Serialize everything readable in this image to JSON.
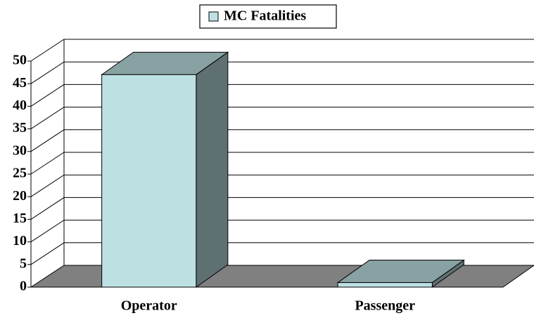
{
  "chart_data": {
    "type": "bar3d",
    "categories": [
      "Operator",
      "Passenger"
    ],
    "series": [
      {
        "name": "MC Fatalities",
        "color": "#bde0e3",
        "values": [
          47,
          1
        ]
      }
    ],
    "ylim": [
      0,
      50
    ],
    "yticks": [
      0,
      5,
      10,
      15,
      20,
      25,
      30,
      35,
      40,
      45,
      50
    ],
    "grid": true,
    "legend": "top"
  }
}
